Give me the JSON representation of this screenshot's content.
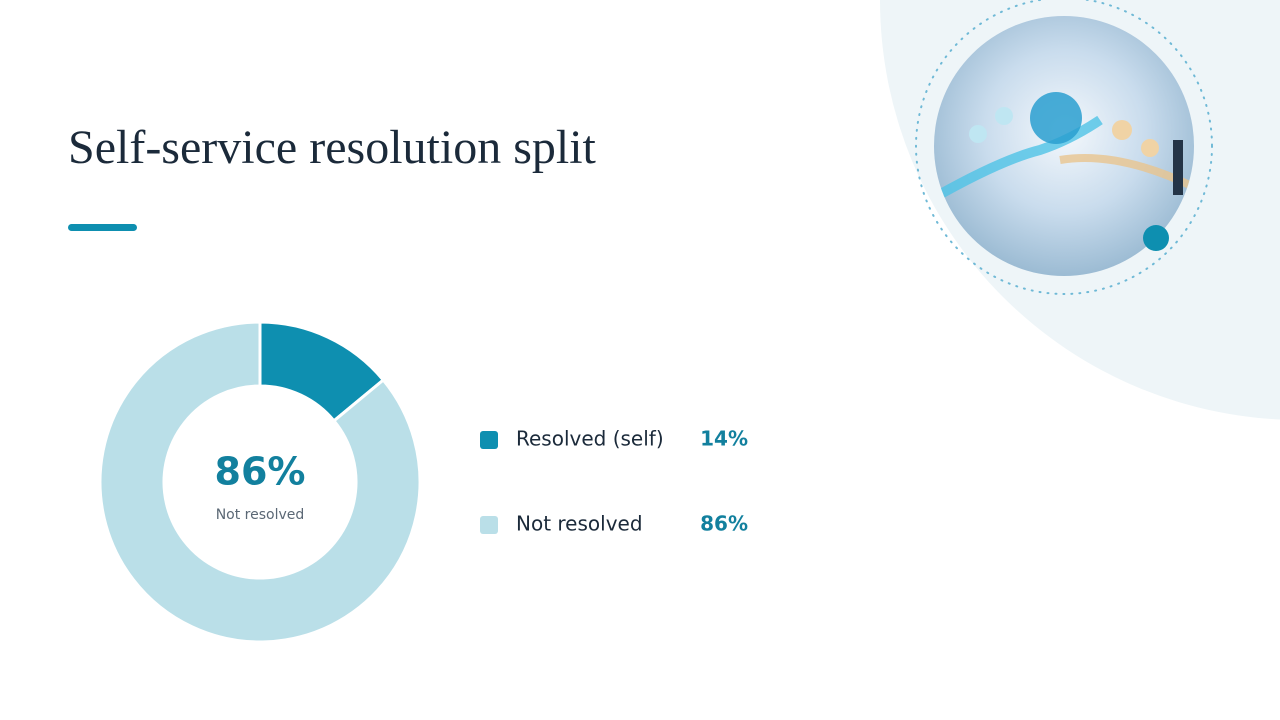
{
  "chart_data": {
    "type": "donut",
    "title": "Self-service resolution split",
    "categories": [
      "Resolved (self)",
      "Not resolved"
    ],
    "values": [
      14,
      86
    ],
    "value_labels": [
      "14%",
      "86%"
    ],
    "colors": [
      "#0e8fb0",
      "#badfe8"
    ]
  }
}
